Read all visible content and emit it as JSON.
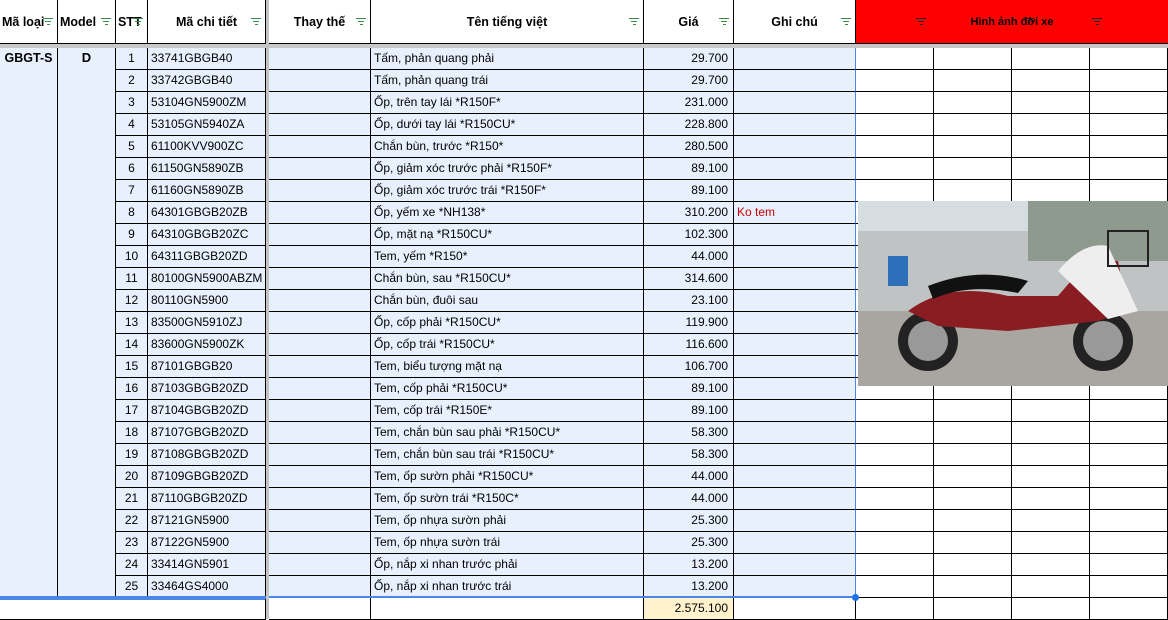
{
  "headers": {
    "ma_loai": "Mã loại",
    "model": "Model",
    "stt": "STT",
    "ma_chi_tiet": "Mã chi tiết",
    "thay_the": "Thay thế",
    "ten": "Tên tiếng việt",
    "gia": "Giá",
    "ghi_chu": "Ghi chú",
    "hinh_anh": "Hình ảnh đời xe"
  },
  "colors": {
    "header_accent": "#ff0000",
    "selection_fill": "#e8f0fe",
    "total_fill": "#fff2cc",
    "note_text": "#cc0000"
  },
  "group": {
    "ma_loai": "GBGT-S",
    "model": "D"
  },
  "rows": [
    {
      "stt": "1",
      "code": "33741GBGB40",
      "name": "Tấm, phản quang phải",
      "price": "29.700",
      "note": ""
    },
    {
      "stt": "2",
      "code": "33742GBGB40",
      "name": "Tấm, phản quang trái",
      "price": "29.700",
      "note": ""
    },
    {
      "stt": "3",
      "code": "53104GN5900ZM",
      "name": "Ốp, trên tay lái *R150F*",
      "price": "231.000",
      "note": ""
    },
    {
      "stt": "4",
      "code": "53105GN5940ZA",
      "name": "Ốp, dưới tay lái *R150CU*",
      "price": "228.800",
      "note": ""
    },
    {
      "stt": "5",
      "code": "61100KVV900ZC",
      "name": "Chắn bùn, trước *R150*",
      "price": "280.500",
      "note": ""
    },
    {
      "stt": "6",
      "code": "61150GN5890ZB",
      "name": "Ốp, giảm xóc trước phải *R150F*",
      "price": "89.100",
      "note": ""
    },
    {
      "stt": "7",
      "code": "61160GN5890ZB",
      "name": "Ốp, giảm xóc trước trái *R150F*",
      "price": "89.100",
      "note": ""
    },
    {
      "stt": "8",
      "code": "64301GBGB20ZB",
      "name": "Ốp, yếm xe *NH138*",
      "price": "310.200",
      "note": "Ko tem"
    },
    {
      "stt": "9",
      "code": "64310GBGB20ZC",
      "name": "Ốp, mặt nạ *R150CU*",
      "price": "102.300",
      "note": ""
    },
    {
      "stt": "10",
      "code": "64311GBGB20ZD",
      "name": "Tem, yếm *R150*",
      "price": "44.000",
      "note": ""
    },
    {
      "stt": "11",
      "code": "80100GN5900ABZM",
      "name": "Chắn bùn, sau *R150CU*",
      "price": "314.600",
      "note": ""
    },
    {
      "stt": "12",
      "code": "80110GN5900",
      "name": "Chắn bùn, đuôi sau",
      "price": "23.100",
      "note": ""
    },
    {
      "stt": "13",
      "code": "83500GN5910ZJ",
      "name": "Ốp, cốp phải *R150CU*",
      "price": "119.900",
      "note": ""
    },
    {
      "stt": "14",
      "code": "83600GN5900ZK",
      "name": "Ốp, cốp trái *R150CU*",
      "price": "116.600",
      "note": ""
    },
    {
      "stt": "15",
      "code": "87101GBGB20",
      "name": "Tem, biểu tượng mặt nạ",
      "price": "106.700",
      "note": ""
    },
    {
      "stt": "16",
      "code": "87103GBGB20ZD",
      "name": "Tem, cốp phải *R150CU*",
      "price": "89.100",
      "note": ""
    },
    {
      "stt": "17",
      "code": "87104GBGB20ZD",
      "name": "Tem, cốp trái *R150E*",
      "price": "89.100",
      "note": ""
    },
    {
      "stt": "18",
      "code": "87107GBGB20ZD",
      "name": "Tem, chắn bùn sau phải *R150CU*",
      "price": "58.300",
      "note": ""
    },
    {
      "stt": "19",
      "code": "87108GBGB20ZD",
      "name": "Tem, chắn bùn sau trái *R150CU*",
      "price": "58.300",
      "note": ""
    },
    {
      "stt": "20",
      "code": "87109GBGB20ZD",
      "name": "Tem, ốp sườn phải *R150CU*",
      "price": "44.000",
      "note": ""
    },
    {
      "stt": "21",
      "code": "87110GBGB20ZD",
      "name": "Tem, ốp sườn trái *R150C*",
      "price": "44.000",
      "note": ""
    },
    {
      "stt": "22",
      "code": "87121GN5900",
      "name": "Tem, ốp nhựa sườn phải",
      "price": "25.300",
      "note": ""
    },
    {
      "stt": "23",
      "code": "87122GN5900",
      "name": "Tem, ốp nhựa sườn trái",
      "price": "25.300",
      "note": ""
    },
    {
      "stt": "24",
      "code": "33414GN5901",
      "name": "Ốp, nắp xi nhan trước phải",
      "price": "13.200",
      "note": ""
    },
    {
      "stt": "25",
      "code": "33464GS4000",
      "name": "Ốp, nắp xi nhan trước trái",
      "price": "13.200",
      "note": ""
    }
  ],
  "total": "2.575.100"
}
